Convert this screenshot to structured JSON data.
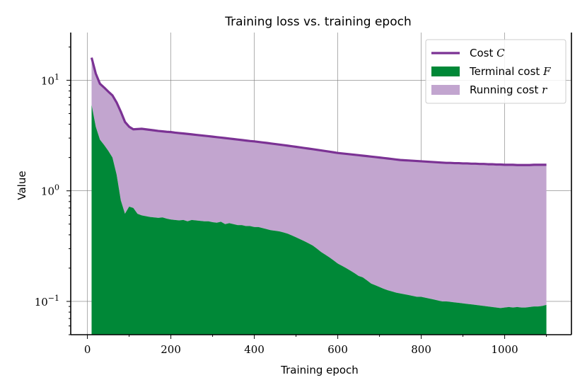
{
  "chart_data": {
    "type": "area",
    "title": "Training loss vs. training epoch",
    "xlabel": "Training epoch",
    "ylabel": "Value",
    "xlim": [
      -40,
      1160
    ],
    "ylim": [
      0.05,
      27
    ],
    "yscale": "log",
    "grid": true,
    "legend_position": "top-right",
    "x_ticks": [
      0,
      200,
      400,
      600,
      800,
      1000
    ],
    "y_ticks": [
      {
        "value": 0.1,
        "base": "10",
        "exp": "−1"
      },
      {
        "value": 1,
        "base": "10",
        "exp": "0"
      },
      {
        "value": 10,
        "base": "10",
        "exp": "1"
      }
    ],
    "x": [
      10,
      20,
      30,
      40,
      50,
      60,
      70,
      80,
      90,
      100,
      110,
      120,
      130,
      140,
      150,
      160,
      170,
      180,
      190,
      200,
      210,
      220,
      230,
      240,
      250,
      260,
      270,
      280,
      290,
      300,
      310,
      320,
      330,
      340,
      350,
      360,
      370,
      380,
      390,
      400,
      410,
      420,
      430,
      440,
      450,
      460,
      470,
      480,
      490,
      500,
      510,
      520,
      530,
      540,
      550,
      560,
      570,
      580,
      590,
      600,
      610,
      620,
      630,
      640,
      650,
      660,
      670,
      680,
      690,
      700,
      710,
      720,
      730,
      740,
      750,
      760,
      770,
      780,
      790,
      800,
      810,
      820,
      830,
      840,
      850,
      860,
      870,
      880,
      890,
      900,
      910,
      920,
      930,
      940,
      950,
      960,
      970,
      980,
      990,
      1000,
      1010,
      1020,
      1030,
      1040,
      1050,
      1060,
      1070,
      1080,
      1090,
      1100
    ],
    "series": [
      {
        "name": "Cost $C$",
        "style": "line",
        "color": "#7b3294",
        "values": [
          16,
          11.5,
          9.3,
          8.6,
          7.9,
          7.3,
          6.3,
          5.2,
          4.2,
          3.8,
          3.6,
          3.62,
          3.64,
          3.6,
          3.56,
          3.52,
          3.48,
          3.45,
          3.42,
          3.4,
          3.36,
          3.33,
          3.3,
          3.27,
          3.24,
          3.21,
          3.18,
          3.15,
          3.12,
          3.09,
          3.06,
          3.03,
          3.0,
          2.97,
          2.94,
          2.91,
          2.88,
          2.85,
          2.82,
          2.8,
          2.77,
          2.74,
          2.71,
          2.68,
          2.65,
          2.62,
          2.59,
          2.56,
          2.53,
          2.5,
          2.47,
          2.44,
          2.41,
          2.38,
          2.35,
          2.32,
          2.29,
          2.26,
          2.23,
          2.2,
          2.18,
          2.16,
          2.14,
          2.12,
          2.1,
          2.08,
          2.06,
          2.04,
          2.02,
          2.0,
          1.98,
          1.96,
          1.94,
          1.92,
          1.9,
          1.89,
          1.88,
          1.87,
          1.86,
          1.85,
          1.84,
          1.83,
          1.82,
          1.81,
          1.8,
          1.79,
          1.79,
          1.78,
          1.78,
          1.77,
          1.77,
          1.76,
          1.76,
          1.75,
          1.75,
          1.74,
          1.74,
          1.73,
          1.73,
          1.72,
          1.72,
          1.72,
          1.71,
          1.71,
          1.71,
          1.71,
          1.72,
          1.72,
          1.72,
          1.72
        ]
      },
      {
        "name": "Terminal cost $F$",
        "style": "area",
        "color": "#008837",
        "values": [
          6.0,
          3.8,
          2.9,
          2.6,
          2.3,
          2.0,
          1.4,
          0.82,
          0.62,
          0.72,
          0.7,
          0.62,
          0.6,
          0.59,
          0.58,
          0.575,
          0.57,
          0.575,
          0.56,
          0.55,
          0.545,
          0.54,
          0.545,
          0.53,
          0.545,
          0.54,
          0.535,
          0.53,
          0.53,
          0.52,
          0.515,
          0.525,
          0.5,
          0.51,
          0.5,
          0.49,
          0.49,
          0.48,
          0.48,
          0.47,
          0.47,
          0.46,
          0.45,
          0.44,
          0.435,
          0.43,
          0.42,
          0.41,
          0.395,
          0.38,
          0.365,
          0.35,
          0.335,
          0.32,
          0.3,
          0.28,
          0.265,
          0.25,
          0.235,
          0.22,
          0.21,
          0.2,
          0.19,
          0.18,
          0.17,
          0.165,
          0.155,
          0.145,
          0.14,
          0.135,
          0.13,
          0.126,
          0.123,
          0.12,
          0.118,
          0.116,
          0.114,
          0.112,
          0.11,
          0.11,
          0.108,
          0.106,
          0.104,
          0.102,
          0.1,
          0.1,
          0.099,
          0.098,
          0.097,
          0.096,
          0.095,
          0.094,
          0.093,
          0.092,
          0.091,
          0.09,
          0.089,
          0.088,
          0.087,
          0.088,
          0.089,
          0.088,
          0.089,
          0.088,
          0.088,
          0.089,
          0.09,
          0.09,
          0.091,
          0.093
        ]
      },
      {
        "name": "Running cost $r$",
        "style": "stacked-area",
        "color": "#c2a5cf",
        "note_values": "fills between Terminal cost F and Cost C"
      }
    ],
    "legend": [
      {
        "label": "Cost ",
        "math": "C",
        "kind": "line",
        "color": "#7b3294"
      },
      {
        "label": "Terminal cost ",
        "math": "F",
        "kind": "patch",
        "color": "#008837"
      },
      {
        "label": "Running cost ",
        "math": "r",
        "kind": "patch",
        "color": "#c2a5cf"
      }
    ]
  }
}
